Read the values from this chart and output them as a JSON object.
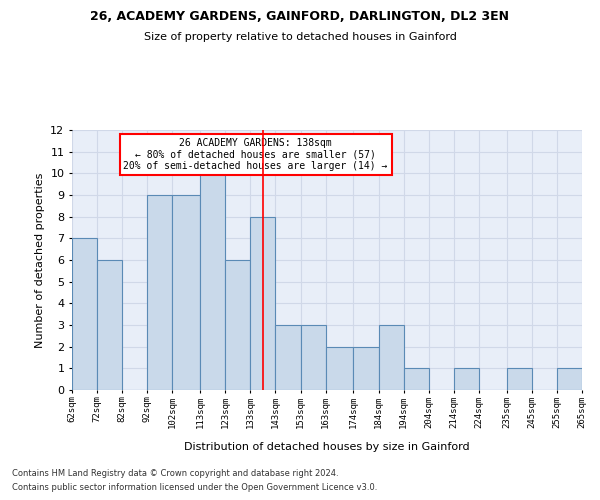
{
  "title1": "26, ACADEMY GARDENS, GAINFORD, DARLINGTON, DL2 3EN",
  "title2": "Size of property relative to detached houses in Gainford",
  "xlabel": "Distribution of detached houses by size in Gainford",
  "ylabel": "Number of detached properties",
  "bin_edges": [
    62,
    72,
    82,
    92,
    102,
    113,
    123,
    133,
    143,
    153,
    163,
    174,
    184,
    194,
    204,
    214,
    224,
    235,
    245,
    255,
    265
  ],
  "bar_heights": [
    7,
    6,
    0,
    9,
    9,
    10,
    6,
    8,
    3,
    3,
    2,
    2,
    3,
    1,
    0,
    1,
    0,
    1,
    0,
    1
  ],
  "bar_color": "#c9d9ea",
  "bar_edge_color": "#5a8ab5",
  "bar_linewidth": 0.8,
  "vline_x": 138,
  "vline_color": "red",
  "ylim": [
    0,
    12
  ],
  "yticks": [
    0,
    1,
    2,
    3,
    4,
    5,
    6,
    7,
    8,
    9,
    10,
    11,
    12
  ],
  "annotation_title": "26 ACADEMY GARDENS: 138sqm",
  "annotation_line1": "← 80% of detached houses are smaller (57)",
  "annotation_line2": "20% of semi-detached houses are larger (14) →",
  "annotation_box_color": "#ffffff",
  "annotation_box_edge": "red",
  "grid_color": "#d0d8e8",
  "bg_color": "#e8eef8",
  "footer1": "Contains HM Land Registry data © Crown copyright and database right 2024.",
  "footer2": "Contains public sector information licensed under the Open Government Licence v3.0.",
  "tick_labels": [
    "62sqm",
    "72sqm",
    "82sqm",
    "92sqm",
    "102sqm",
    "113sqm",
    "123sqm",
    "133sqm",
    "143sqm",
    "153sqm",
    "163sqm",
    "174sqm",
    "184sqm",
    "194sqm",
    "204sqm",
    "214sqm",
    "224sqm",
    "235sqm",
    "245sqm",
    "255sqm",
    "265sqm"
  ]
}
